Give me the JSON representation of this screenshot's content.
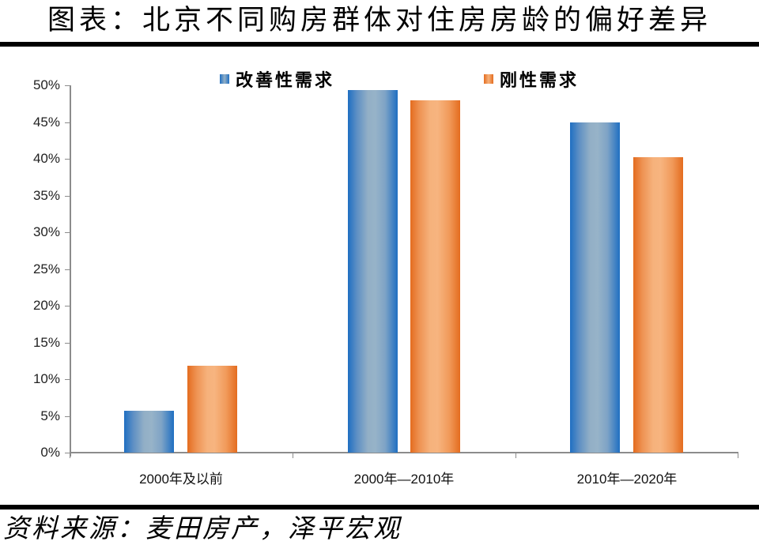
{
  "title": "图表：北京不同购房群体对住房房龄的偏好差异",
  "source": "资料来源：麦田房产，泽平宏观",
  "legend": {
    "series_0": "改善性需求",
    "series_1": "刚性需求"
  },
  "y_ticks": [
    "0%",
    "5%",
    "10%",
    "15%",
    "20%",
    "25%",
    "30%",
    "35%",
    "40%",
    "45%",
    "50%"
  ],
  "x_labels": [
    "2000年及以前",
    "2000年—2010年",
    "2010年—2020年"
  ],
  "colors": {
    "series_0": "#1f6fc2",
    "series_1": "#e46c1f"
  },
  "chart_data": {
    "type": "bar",
    "title": "图表：北京不同购房群体对住房房龄的偏好差异",
    "categories": [
      "2000年及以前",
      "2000年—2010年",
      "2010年—2020年"
    ],
    "series": [
      {
        "name": "改善性需求",
        "values": [
          5.7,
          49.4,
          45.0
        ]
      },
      {
        "name": "刚性需求",
        "values": [
          11.8,
          48.0,
          40.2
        ]
      }
    ],
    "xlabel": "",
    "ylabel": "",
    "ylim": [
      0,
      50
    ],
    "y_unit": "%",
    "y_ticks": [
      0,
      5,
      10,
      15,
      20,
      25,
      30,
      35,
      40,
      45,
      50
    ],
    "grid": false,
    "legend_position": "top"
  }
}
